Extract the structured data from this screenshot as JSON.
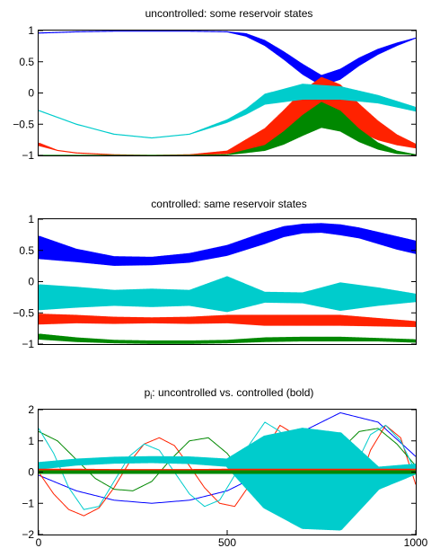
{
  "chart_data": [
    {
      "type": "line",
      "title": "uncontrolled: some reservoir states",
      "xlim": [
        0,
        1000
      ],
      "ylim": [
        -1,
        1
      ],
      "yticks": [
        "1",
        "0.5",
        "0",
        "−0.5",
        "−1"
      ],
      "ytick_values": [
        1,
        0.5,
        0,
        -0.5,
        -1
      ],
      "xticks": [],
      "grid": false,
      "series": [
        {
          "color": "#0000ff",
          "x": [
            0,
            100,
            200,
            300,
            400,
            500,
            550,
            600,
            650,
            700,
            750,
            800,
            850,
            900,
            950,
            1000
          ],
          "y": [
            0.96,
            0.98,
            0.99,
            0.99,
            0.99,
            0.98,
            0.93,
            0.8,
            0.6,
            0.38,
            0.2,
            0.3,
            0.5,
            0.66,
            0.78,
            0.88
          ],
          "band": [
            0,
            0,
            0,
            0,
            0,
            0,
            0.02,
            0.04,
            0.06,
            0.08,
            0.08,
            0.08,
            0.06,
            0.04,
            0.02,
            0
          ]
        },
        {
          "color": "#ff2200",
          "x": [
            0,
            50,
            100,
            200,
            300,
            400,
            500,
            600,
            650,
            700,
            750,
            800,
            850,
            900,
            950,
            1000
          ],
          "y": [
            -0.82,
            -0.92,
            -0.96,
            -0.99,
            -1.0,
            -0.99,
            -0.95,
            -0.72,
            -0.5,
            -0.25,
            -0.05,
            -0.15,
            -0.4,
            -0.6,
            -0.75,
            -0.85
          ],
          "band": [
            0.02,
            0,
            0,
            0,
            0,
            0,
            0.02,
            0.15,
            0.22,
            0.28,
            0.3,
            0.28,
            0.22,
            0.15,
            0.08,
            0.03
          ]
        },
        {
          "color": "#008800",
          "x": [
            0,
            100,
            200,
            300,
            400,
            500,
            600,
            650,
            700,
            750,
            800,
            850,
            900,
            950,
            1000
          ],
          "y": [
            -1.0,
            -1.0,
            -1.0,
            -1.0,
            -1.0,
            -0.99,
            -0.88,
            -0.72,
            -0.52,
            -0.35,
            -0.45,
            -0.68,
            -0.85,
            -0.95,
            -0.99
          ],
          "band": [
            0,
            0,
            0,
            0,
            0,
            0,
            0.04,
            0.1,
            0.16,
            0.2,
            0.16,
            0.1,
            0.05,
            0.02,
            0
          ]
        },
        {
          "color": "#00cccc",
          "x": [
            0,
            100,
            200,
            300,
            400,
            500,
            550,
            600,
            700,
            800,
            900,
            1000
          ],
          "y": [
            -0.28,
            -0.5,
            -0.66,
            -0.72,
            -0.66,
            -0.45,
            -0.3,
            -0.1,
            0.02,
            0.0,
            -0.1,
            -0.26
          ],
          "band": [
            0,
            0,
            0,
            0,
            0,
            0.02,
            0.04,
            0.08,
            0.12,
            0.1,
            0.06,
            0.03
          ]
        }
      ]
    },
    {
      "type": "line",
      "title": "controlled: same reservoir states",
      "xlim": [
        0,
        1000
      ],
      "ylim": [
        -1,
        1
      ],
      "yticks": [
        "1",
        "0.5",
        "0",
        "−0.5",
        "−1"
      ],
      "ytick_values": [
        1,
        0.5,
        0,
        -0.5,
        -1
      ],
      "xticks": [],
      "grid": false,
      "series": [
        {
          "color": "#0000ff",
          "x": [
            0,
            100,
            200,
            300,
            400,
            500,
            600,
            650,
            700,
            750,
            800,
            850,
            900,
            950,
            1000
          ],
          "y": [
            0.55,
            0.42,
            0.33,
            0.33,
            0.38,
            0.5,
            0.7,
            0.8,
            0.85,
            0.86,
            0.83,
            0.78,
            0.7,
            0.62,
            0.55
          ],
          "band": [
            0.18,
            0.1,
            0.07,
            0.06,
            0.07,
            0.08,
            0.09,
            0.08,
            0.07,
            0.07,
            0.08,
            0.08,
            0.09,
            0.1,
            0.1
          ]
        },
        {
          "color": "#ff2200",
          "x": [
            0,
            100,
            200,
            300,
            400,
            500,
            600,
            700,
            800,
            900,
            1000
          ],
          "y": [
            -0.6,
            -0.6,
            -0.62,
            -0.62,
            -0.62,
            -0.6,
            -0.62,
            -0.62,
            -0.62,
            -0.65,
            -0.68
          ],
          "band": [
            0.08,
            0.06,
            0.05,
            0.04,
            0.05,
            0.06,
            0.08,
            0.08,
            0.08,
            0.06,
            0.04
          ]
        },
        {
          "color": "#008800",
          "x": [
            0,
            100,
            200,
            300,
            400,
            500,
            600,
            700,
            800,
            900,
            1000
          ],
          "y": [
            -0.88,
            -0.93,
            -0.96,
            -0.97,
            -0.97,
            -0.96,
            -0.93,
            -0.92,
            -0.92,
            -0.93,
            -0.95
          ],
          "band": [
            0.04,
            0.03,
            0.02,
            0.02,
            0.02,
            0.02,
            0.03,
            0.03,
            0.03,
            0.02,
            0.02
          ]
        },
        {
          "color": "#00cccc",
          "x": [
            0,
            100,
            200,
            300,
            400,
            500,
            600,
            700,
            800,
            900,
            1000
          ],
          "y": [
            -0.25,
            -0.25,
            -0.26,
            -0.26,
            -0.26,
            -0.2,
            -0.25,
            -0.26,
            -0.24,
            -0.24,
            -0.26
          ],
          "band": [
            0.2,
            0.16,
            0.12,
            0.14,
            0.12,
            0.28,
            0.08,
            0.08,
            0.22,
            0.14,
            0.06
          ]
        }
      ]
    },
    {
      "type": "line",
      "title": "p",
      "title_subscript": "i",
      "title_suffix": ": uncontrolled vs. controlled (bold)",
      "xlim": [
        0,
        1000
      ],
      "ylim": [
        -2,
        2
      ],
      "yticks": [
        "2",
        "1",
        "0",
        "−1",
        "−2"
      ],
      "ytick_values": [
        2,
        1,
        0,
        -1,
        -2
      ],
      "xticks": [
        "0",
        "500",
        "1000"
      ],
      "xtick_values": [
        0,
        500,
        1000
      ],
      "grid": false,
      "series": [
        {
          "color": "#0000ff",
          "width": 1,
          "x": [
            0,
            100,
            200,
            300,
            400,
            500,
            600,
            700,
            800,
            900,
            1000
          ],
          "y": [
            -0.1,
            -0.6,
            -0.9,
            -1.0,
            -0.9,
            -0.6,
            0.0,
            1.3,
            1.9,
            1.6,
            0.5
          ],
          "band": [
            0,
            0,
            0,
            0,
            0,
            0,
            0,
            0,
            0,
            0,
            0
          ]
        },
        {
          "color": "#ff2200",
          "width": 1,
          "x": [
            0,
            40,
            80,
            120,
            160,
            200,
            240,
            280,
            320,
            360,
            400,
            440,
            480,
            520,
            560,
            600,
            640,
            680,
            720,
            760,
            800,
            840,
            880,
            920,
            960,
            1000
          ],
          "y": [
            0.0,
            -0.7,
            -1.2,
            -1.4,
            -1.15,
            -0.5,
            0.3,
            0.9,
            1.1,
            0.85,
            0.2,
            -0.5,
            -1.0,
            -1.1,
            -0.4,
            0.7,
            1.5,
            1.2,
            0.0,
            -1.2,
            -1.6,
            -0.7,
            0.7,
            1.5,
            1.1,
            -0.4
          ],
          "band": []
        },
        {
          "color": "#008800",
          "width": 1,
          "x": [
            0,
            50,
            100,
            150,
            200,
            250,
            300,
            350,
            400,
            450,
            500,
            550,
            600,
            650,
            700,
            750,
            800,
            850,
            900,
            950,
            1000
          ],
          "y": [
            1.3,
            1.0,
            0.4,
            -0.2,
            -0.55,
            -0.6,
            -0.3,
            0.4,
            1.0,
            1.1,
            0.6,
            -0.2,
            -0.9,
            -1.4,
            -1.2,
            -0.3,
            0.7,
            1.3,
            1.4,
            0.9,
            0.2
          ],
          "band": []
        },
        {
          "color": "#00cccc",
          "width": 1,
          "x": [
            0,
            40,
            80,
            120,
            160,
            200,
            240,
            280,
            320,
            360,
            400,
            440,
            480,
            520,
            560,
            600,
            640,
            680,
            720,
            760,
            800,
            840,
            880,
            920,
            960,
            1000
          ],
          "y": [
            1.4,
            0.6,
            -0.5,
            -1.2,
            -1.1,
            -0.3,
            0.5,
            0.9,
            0.7,
            0.0,
            -0.7,
            -1.1,
            -0.9,
            -0.1,
            0.9,
            1.6,
            1.3,
            0.2,
            -1.0,
            -1.6,
            -1.0,
            0.2,
            1.2,
            1.5,
            1.0,
            0.0
          ],
          "band": []
        },
        {
          "color": "#00cccc",
          "width": 5,
          "bold": true,
          "x": [
            0,
            100,
            200,
            300,
            400,
            500,
            600,
            700,
            800,
            900,
            1000
          ],
          "y": [
            0.2,
            0.32,
            0.38,
            0.4,
            0.38,
            0.3,
            0.0,
            -0.2,
            -0.3,
            -0.2,
            0.1
          ],
          "band": [
            0.05,
            0.04,
            0.04,
            0.04,
            0.05,
            0.06,
            1.1,
            1.55,
            1.5,
            0.3,
            0.1
          ]
        },
        {
          "color": "#ff2200",
          "width": 4,
          "bold": true,
          "x": [
            0,
            100,
            200,
            300,
            400,
            500,
            600,
            700,
            800,
            900,
            1000
          ],
          "y": [
            0.05,
            0.05,
            0.04,
            0.04,
            0.04,
            0.05,
            0.05,
            0.05,
            0.05,
            0.05,
            0.05
          ],
          "band": []
        },
        {
          "color": "#008800",
          "width": 4,
          "bold": true,
          "x": [
            0,
            100,
            200,
            300,
            400,
            500,
            600,
            700,
            800,
            900,
            1000
          ],
          "y": [
            0.0,
            0.0,
            0.0,
            0.0,
            0.0,
            0.0,
            0.0,
            0.0,
            0.0,
            0.0,
            0.0
          ],
          "band": []
        }
      ]
    }
  ]
}
